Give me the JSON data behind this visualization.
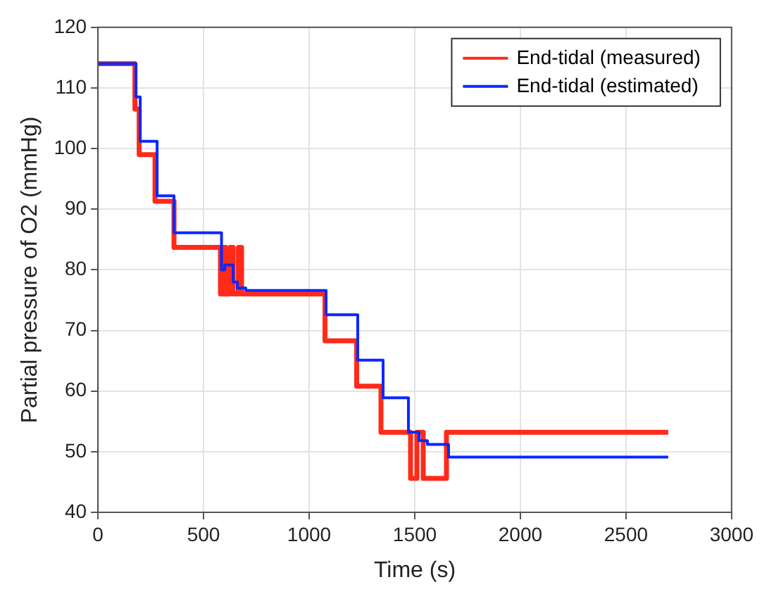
{
  "chart_data": {
    "type": "step",
    "xlabel": "Time (s)",
    "ylabel": "Partial pressure of O2 (mmHg)",
    "xlim": [
      0,
      3000
    ],
    "xticks": [
      0,
      500,
      1000,
      1500,
      2000,
      2500,
      3000
    ],
    "ylim": [
      40,
      120
    ],
    "yticks": [
      40,
      50,
      60,
      70,
      80,
      90,
      100,
      110,
      120
    ],
    "grid": true,
    "legend": "top right",
    "line_style": "solid",
    "marker": "none",
    "series": [
      {
        "name": "End-tidal (measured)",
        "color": "#ff2a1a",
        "x": [
          0,
          175,
          195,
          270,
          360,
          580,
          595,
          605,
          625,
          640,
          665,
          680,
          700,
          1075,
          1225,
          1340,
          1480,
          1510,
          1540,
          1650,
          2700
        ],
        "values": [
          114,
          106.5,
          99,
          91.3,
          83.7,
          76,
          83.7,
          76,
          83.7,
          76,
          83.7,
          76,
          76,
          68.3,
          60.8,
          53.2,
          45.6,
          53.2,
          45.6,
          53.2,
          53.2
        ]
      },
      {
        "name": "End-tidal (estimated)",
        "color": "#0a28ff",
        "x": [
          0,
          180,
          200,
          280,
          360,
          585,
          600,
          640,
          660,
          700,
          1080,
          1230,
          1350,
          1470,
          1520,
          1560,
          1660,
          2700
        ],
        "values": [
          114,
          108.5,
          101.2,
          92.2,
          86.1,
          80,
          80.8,
          78,
          77,
          76.6,
          72.6,
          65.1,
          58.9,
          53.2,
          51.8,
          51.2,
          49.1,
          49.1
        ]
      }
    ]
  }
}
